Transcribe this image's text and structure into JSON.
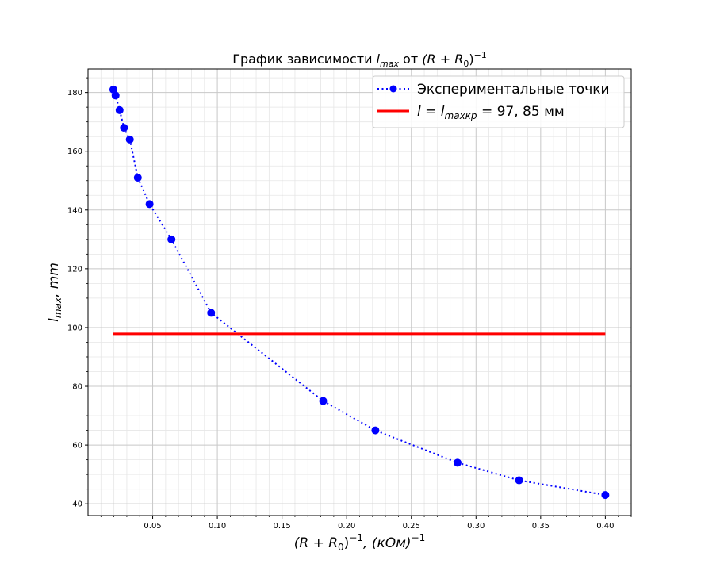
{
  "chart_data": {
    "type": "line",
    "title": {
      "prefix": "График зависимости ",
      "var": "l",
      "var_sub": "max",
      "middle": " от ",
      "expr": "(R + R",
      "expr_sub": "0",
      "expr_close": ")",
      "expr_sup": "−1"
    },
    "xlabel": {
      "expr": "(R + R",
      "expr_sub": "0",
      "expr_close": ")",
      "expr_sup": "−1",
      "unit_open": ", (кОм)",
      "unit_sup": "−1"
    },
    "ylabel": {
      "var": "l",
      "var_sub": "max",
      "unit": ", mm"
    },
    "xlim": [
      0.0,
      0.42
    ],
    "ylim": [
      36,
      188
    ],
    "x_ticks": [
      0.05,
      0.1,
      0.15,
      0.2,
      0.25,
      0.3,
      0.35,
      0.4
    ],
    "x_tick_labels": [
      "0.05",
      "0.10",
      "0.15",
      "0.20",
      "0.25",
      "0.30",
      "0.35",
      "0.40"
    ],
    "y_ticks": [
      40,
      60,
      80,
      100,
      120,
      140,
      160,
      180
    ],
    "y_tick_labels": [
      "40",
      "60",
      "80",
      "100",
      "120",
      "140",
      "160",
      "180"
    ],
    "grid": "major and minor",
    "legend_position": "top-right",
    "series": [
      {
        "name": "Экспериментальные точки",
        "style": "dotted line with markers",
        "color": "#0000ff",
        "x": [
          0.0196,
          0.0213,
          0.0244,
          0.0278,
          0.0323,
          0.0385,
          0.0476,
          0.0645,
          0.0952,
          0.1818,
          0.2222,
          0.2857,
          0.3333,
          0.4
        ],
        "y": [
          181,
          179,
          174,
          168,
          164,
          151,
          142,
          130,
          105,
          75,
          65,
          54,
          48,
          43
        ]
      },
      {
        "name_math": {
          "var": "l",
          "eq": " = ",
          "var2": "l",
          "var2_sub": "maxкр",
          "value": " = 97, 85 мм"
        },
        "style": "solid line",
        "color": "#ff0000",
        "x": [
          0.0196,
          0.4
        ],
        "y": [
          97.85,
          97.85
        ]
      }
    ]
  }
}
